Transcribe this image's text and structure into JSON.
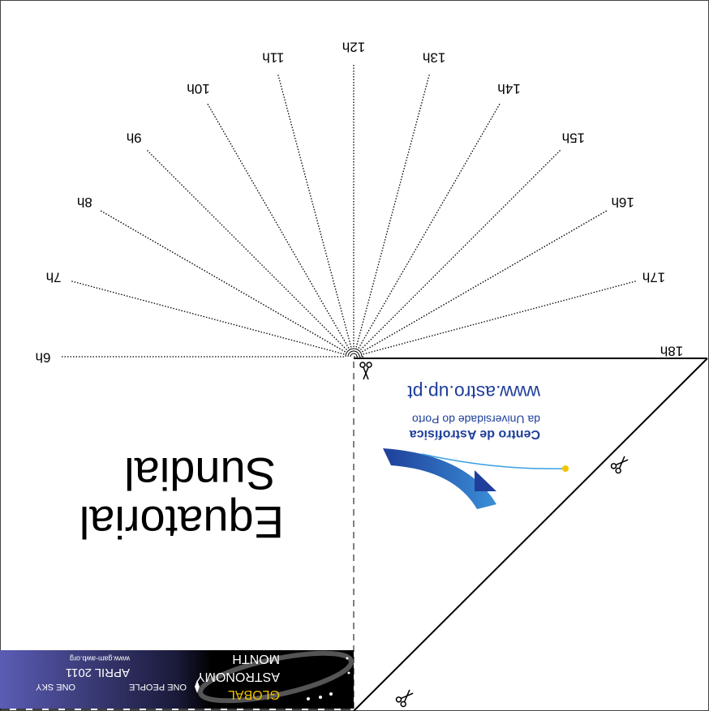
{
  "hours": [
    "6h",
    "7h",
    "8h",
    "9h",
    "10h",
    "11h",
    "12h",
    "13h",
    "14h",
    "15h",
    "16h",
    "17h",
    "18h"
  ],
  "title": {
    "line1": "Equatorial",
    "line2": "Sundial"
  },
  "logo": {
    "name": "Centro de Astrofísica",
    "subtitle": "da Universidade do Porto",
    "url": "www.astro.up.pt"
  },
  "banner": {
    "line1": "GLOBAL",
    "line2": "ASTRONOMY",
    "line3": "MONTH",
    "tagline_left": "ONE PEOPLE",
    "tagline_right": "ONE SKY",
    "date": "APRIL 2011",
    "url": "www.gam-awb.org"
  }
}
